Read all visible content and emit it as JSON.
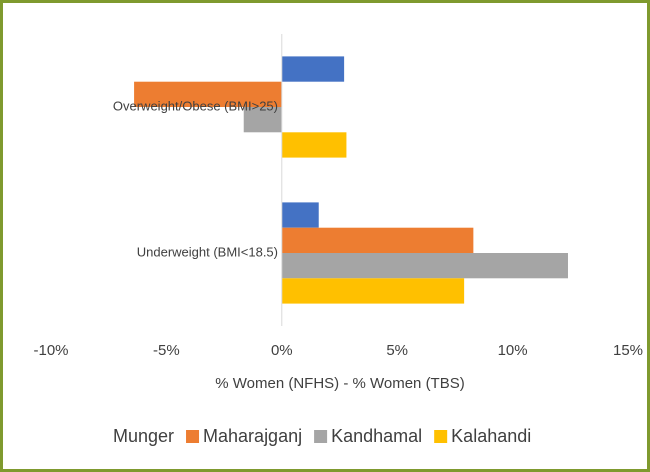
{
  "chart_data": {
    "type": "hbar",
    "x_label": "% Women (NFHS) - % Women (TBS)",
    "categories": [
      "Overweight/Obese (BMI>25)",
      "Underweight (BMI<18.5)"
    ],
    "series": [
      {
        "name": "Munger",
        "color": "#4472c4",
        "values": [
          2.7,
          1.6
        ]
      },
      {
        "name": "Maharajganj",
        "color": "#ed7d31",
        "values": [
          -6.4,
          8.3
        ]
      },
      {
        "name": "Kandhamal",
        "color": "#a5a5a5",
        "values": [
          -1.65,
          12.4
        ]
      },
      {
        "name": "Kalahandi",
        "color": "#ffc000",
        "values": [
          2.8,
          7.9
        ]
      }
    ],
    "xlim": [
      -10,
      15
    ],
    "xticks": [
      {
        "value": -10,
        "label": "-10%"
      },
      {
        "value": -5,
        "label": "-5%"
      },
      {
        "value": 0,
        "label": "0%"
      },
      {
        "value": 5,
        "label": "5%"
      },
      {
        "value": 10,
        "label": "10%"
      },
      {
        "value": 15,
        "label": "15%"
      }
    ],
    "grid": false,
    "legend": "bottom"
  }
}
